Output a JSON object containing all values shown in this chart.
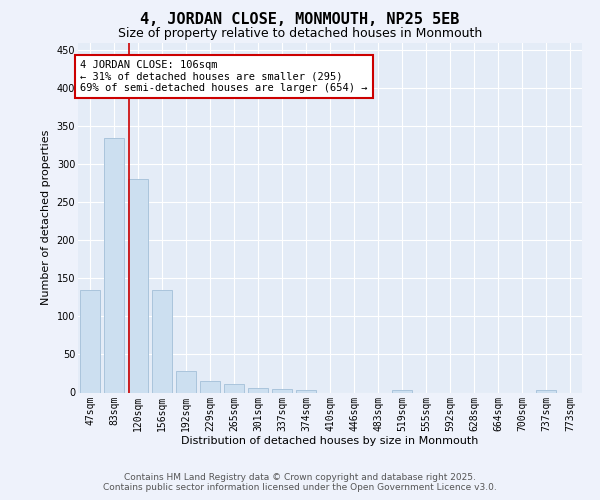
{
  "title": "4, JORDAN CLOSE, MONMOUTH, NP25 5EB",
  "subtitle": "Size of property relative to detached houses in Monmouth",
  "xlabel": "Distribution of detached houses by size in Monmouth",
  "ylabel": "Number of detached properties",
  "categories": [
    "47sqm",
    "83sqm",
    "120sqm",
    "156sqm",
    "192sqm",
    "229sqm",
    "265sqm",
    "301sqm",
    "337sqm",
    "374sqm",
    "410sqm",
    "446sqm",
    "483sqm",
    "519sqm",
    "555sqm",
    "592sqm",
    "628sqm",
    "664sqm",
    "700sqm",
    "737sqm",
    "773sqm"
  ],
  "values": [
    135,
    335,
    280,
    135,
    28,
    15,
    11,
    6,
    5,
    3,
    0,
    0,
    0,
    3,
    0,
    0,
    0,
    0,
    0,
    3,
    0
  ],
  "bar_color": "#ccdff0",
  "bar_edge_color": "#aac4dc",
  "vline_x": 1.62,
  "vline_color": "#cc0000",
  "annotation_text": "4 JORDAN CLOSE: 106sqm\n← 31% of detached houses are smaller (295)\n69% of semi-detached houses are larger (654) →",
  "annotation_box_color": "white",
  "annotation_box_edge_color": "#cc0000",
  "ylim": [
    0,
    460
  ],
  "yticks": [
    0,
    50,
    100,
    150,
    200,
    250,
    300,
    350,
    400,
    450
  ],
  "bg_color": "#eef2fb",
  "plot_bg_color": "#e4ecf7",
  "grid_color": "white",
  "footer_line1": "Contains HM Land Registry data © Crown copyright and database right 2025.",
  "footer_line2": "Contains public sector information licensed under the Open Government Licence v3.0.",
  "title_fontsize": 11,
  "subtitle_fontsize": 9,
  "axis_label_fontsize": 8,
  "tick_fontsize": 7,
  "annotation_fontsize": 7.5,
  "footer_fontsize": 6.5
}
